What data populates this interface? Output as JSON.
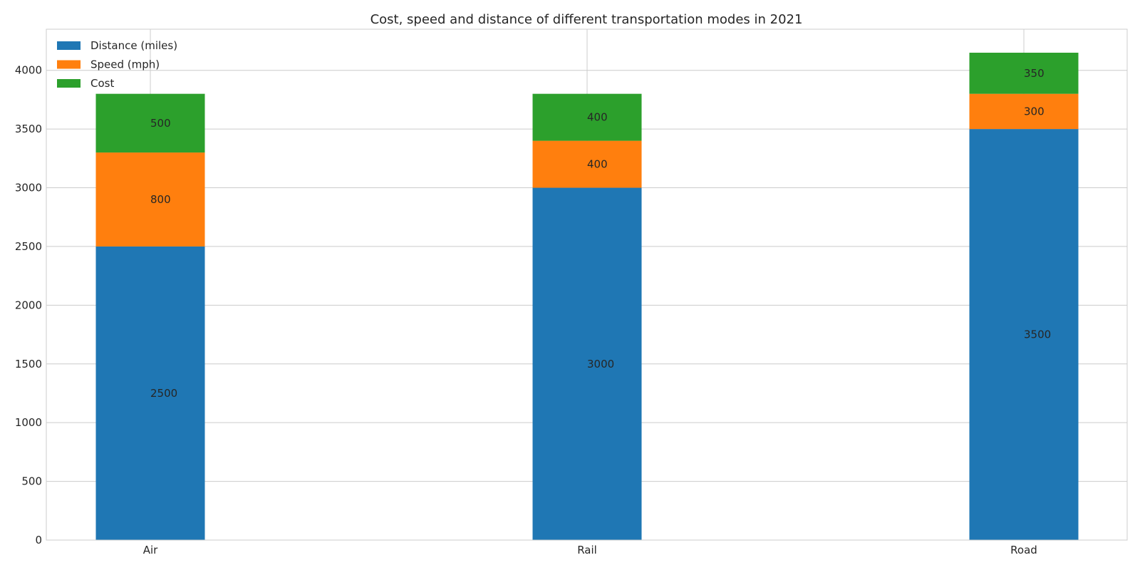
{
  "chart_data": {
    "type": "bar",
    "stacked": true,
    "title": "Cost, speed and distance of different transportation modes in 2021",
    "xlabel": "",
    "ylabel": "",
    "categories": [
      "Air",
      "Rail",
      "Road"
    ],
    "series": [
      {
        "name": "Distance (miles)",
        "values": [
          2500,
          3000,
          3500
        ],
        "color": "#1f77b4"
      },
      {
        "name": "Speed (mph)",
        "values": [
          800,
          400,
          300
        ],
        "color": "#ff7f0e"
      },
      {
        "name": "Cost",
        "values": [
          500,
          400,
          350
        ],
        "color": "#2ca02c"
      }
    ],
    "ylim": [
      0,
      4350
    ],
    "yticks": [
      0,
      500,
      1000,
      1500,
      2000,
      2500,
      3000,
      3500,
      4000
    ],
    "grid": true,
    "legend_position": "top-left"
  }
}
